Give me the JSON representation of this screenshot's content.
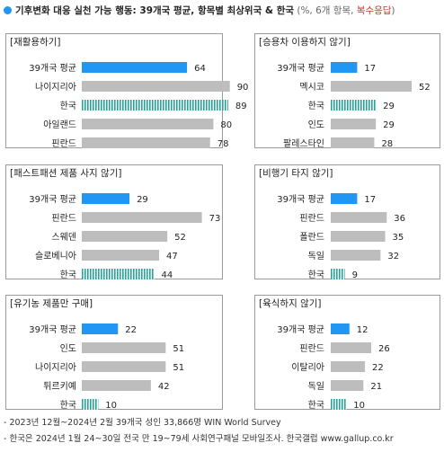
{
  "header": {
    "title": "기후변화 대응 실천 가능 행동: 39개국 평균, 항목별 최상위국 & 한국",
    "note_open": " (%, 6개 항목, ",
    "note_multi": "복수응답",
    "note_close": ")"
  },
  "colors": {
    "average": "#2196F3",
    "country": "#BDBDBD",
    "korea": "#26A69A",
    "frame": "#9a9a9a",
    "marker": "#2196F3"
  },
  "chart_data": [
    {
      "type": "bar",
      "title": "[재활용하기]",
      "categories": [
        "39개국 평균",
        "나이지리아",
        "한국",
        "아일랜드",
        "핀란드"
      ],
      "values": [
        64,
        90,
        89,
        80,
        78
      ],
      "styles": [
        "average",
        "country",
        "korea",
        "country",
        "country"
      ]
    },
    {
      "type": "bar",
      "title": "[승용차 이용하지 않기]",
      "categories": [
        "39개국 평균",
        "멕시코",
        "한국",
        "인도",
        "팔레스타인"
      ],
      "values": [
        17,
        52,
        29,
        29,
        28
      ],
      "styles": [
        "average",
        "country",
        "korea",
        "country",
        "country"
      ]
    },
    {
      "type": "bar",
      "title": "[패스트패션 제품 사지 않기]",
      "categories": [
        "39개국 평균",
        "핀란드",
        "스웨덴",
        "슬로베니아",
        "한국"
      ],
      "values": [
        29,
        73,
        52,
        47,
        44
      ],
      "styles": [
        "average",
        "country",
        "country",
        "country",
        "korea"
      ]
    },
    {
      "type": "bar",
      "title": "[비행기 타지 않기]",
      "categories": [
        "39개국 평균",
        "핀란드",
        "폴란드",
        "독일",
        "한국"
      ],
      "values": [
        17,
        36,
        35,
        32,
        9
      ],
      "styles": [
        "average",
        "country",
        "country",
        "country",
        "korea"
      ]
    },
    {
      "type": "bar",
      "title": "[유기농 제품만 구매]",
      "categories": [
        "39개국 평균",
        "인도",
        "나이지리아",
        "튀르키예",
        "한국"
      ],
      "values": [
        22,
        51,
        51,
        42,
        10
      ],
      "styles": [
        "average",
        "country",
        "country",
        "country",
        "korea"
      ]
    },
    {
      "type": "bar",
      "title": "[육식하지 않기]",
      "categories": [
        "39개국 평균",
        "핀란드",
        "이탈리아",
        "독일",
        "한국"
      ],
      "values": [
        12,
        26,
        22,
        21,
        10
      ],
      "styles": [
        "average",
        "country",
        "country",
        "country",
        "korea"
      ]
    }
  ],
  "footer": [
    "- 2023년 12월~2024년 2월 39개국 성인 33,866명 WIN World Survey",
    "- 한국은 2024년 1월 24~30일 전국 만 19~79세 사회연구패널 모바일조사. 한국갤럽 www.gallup.co.kr"
  ]
}
